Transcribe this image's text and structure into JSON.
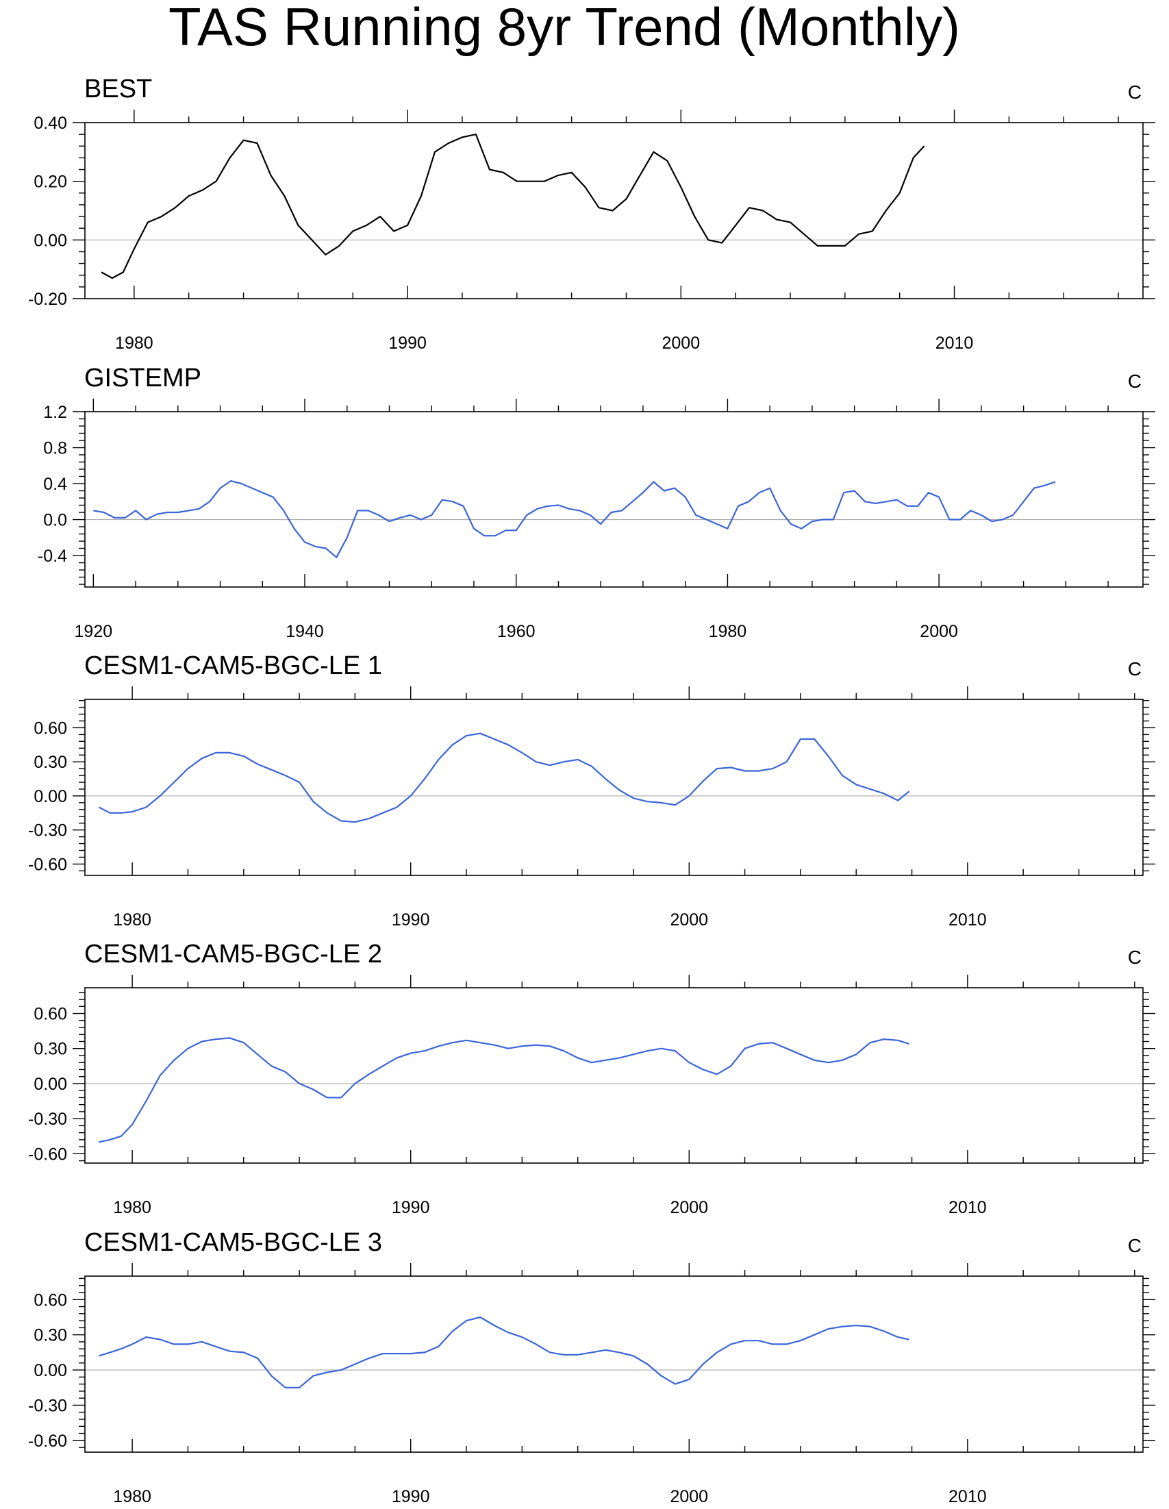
{
  "title": "TAS Running 8yr Trend (Monthly)",
  "colors": {
    "observed": "#000000",
    "model": "#3a64d8",
    "zero_line": "#aaaaaa"
  },
  "chart_data": [
    {
      "type": "line",
      "title": "BEST",
      "units": "C",
      "xlim": [
        1978.2,
        2016.9
      ],
      "ylim": [
        -0.2,
        0.4
      ],
      "xticks": [
        1980,
        1990,
        2000,
        2010
      ],
      "xtick_labels": [
        "1980",
        "1990",
        "2000",
        "2010"
      ],
      "yticks": [
        -0.2,
        0.0,
        0.2,
        0.4
      ],
      "ytick_labels": [
        "-0.20",
        "0.00",
        "0.20",
        "0.40"
      ],
      "color_key": "observed",
      "series": [
        {
          "name": "BEST",
          "x": [
            1978.8,
            1979.2,
            1979.6,
            1980.0,
            1980.5,
            1981.0,
            1981.5,
            1982.0,
            1982.5,
            1983.0,
            1983.5,
            1984.0,
            1984.5,
            1985.0,
            1985.5,
            1986.0,
            1986.5,
            1987.0,
            1987.5,
            1988.0,
            1988.5,
            1989.0,
            1989.5,
            1990.0,
            1990.5,
            1991.0,
            1991.5,
            1992.0,
            1992.5,
            1993.0,
            1993.5,
            1994.0,
            1994.5,
            1995.0,
            1995.5,
            1996.0,
            1996.5,
            1997.0,
            1997.5,
            1998.0,
            1998.5,
            1999.0,
            1999.5,
            2000.0,
            2000.5,
            2001.0,
            2001.5,
            2002.0,
            2002.5,
            2003.0,
            2003.5,
            2004.0,
            2004.5,
            2005.0,
            2005.5,
            2006.0,
            2006.5,
            2007.0,
            2007.5,
            2008.0,
            2008.5,
            2008.9
          ],
          "values": [
            -0.11,
            -0.13,
            -0.11,
            -0.03,
            0.06,
            0.08,
            0.11,
            0.15,
            0.17,
            0.2,
            0.28,
            0.34,
            0.33,
            0.22,
            0.15,
            0.05,
            0.0,
            -0.05,
            -0.02,
            0.03,
            0.05,
            0.08,
            0.03,
            0.05,
            0.15,
            0.3,
            0.33,
            0.35,
            0.36,
            0.24,
            0.23,
            0.2,
            0.2,
            0.2,
            0.22,
            0.23,
            0.18,
            0.11,
            0.1,
            0.14,
            0.22,
            0.3,
            0.27,
            0.18,
            0.08,
            0.0,
            -0.01,
            0.05,
            0.11,
            0.1,
            0.07,
            0.06,
            0.02,
            -0.02,
            -0.02,
            -0.02,
            0.02,
            0.03,
            0.1,
            0.16,
            0.28,
            0.32
          ]
        }
      ]
    },
    {
      "type": "line",
      "title": "GISTEMP",
      "units": "C",
      "xlim": [
        1919.2,
        2019.3
      ],
      "ylim": [
        -0.75,
        1.2
      ],
      "xticks": [
        1920,
        1940,
        1960,
        1980,
        2000
      ],
      "xtick_labels": [
        "1920",
        "1940",
        "1960",
        "1980",
        "2000"
      ],
      "yticks": [
        -0.4,
        0.0,
        0.4,
        0.8,
        1.2
      ],
      "ytick_labels": [
        "-0.4",
        "0.0",
        "0.4",
        "0.8",
        "1.2"
      ],
      "color_key": "model",
      "series": [
        {
          "name": "GISTEMP",
          "x": [
            1920,
            1921,
            1922,
            1923,
            1924,
            1925,
            1926,
            1927,
            1928,
            1929,
            1930,
            1931,
            1932,
            1933,
            1934,
            1935,
            1936,
            1937,
            1938,
            1939,
            1940,
            1941,
            1942,
            1943,
            1944,
            1945,
            1946,
            1947,
            1948,
            1949,
            1950,
            1951,
            1952,
            1953,
            1954,
            1955,
            1956,
            1957,
            1958,
            1959,
            1960,
            1961,
            1962,
            1963,
            1964,
            1965,
            1966,
            1967,
            1968,
            1969,
            1970,
            1971,
            1972,
            1973,
            1974,
            1975,
            1976,
            1977,
            1978,
            1979,
            1980,
            1981,
            1982,
            1983,
            1984,
            1985,
            1986,
            1987,
            1988,
            1989,
            1990,
            1991,
            1992,
            1993,
            1994,
            1995,
            1996,
            1997,
            1998,
            1999,
            2000,
            2001,
            2002,
            2003,
            2004,
            2005,
            2006,
            2007,
            2008,
            2009,
            2010,
            2011
          ],
          "values": [
            0.1,
            0.08,
            0.02,
            0.02,
            0.1,
            0.0,
            0.06,
            0.08,
            0.08,
            0.1,
            0.12,
            0.2,
            0.35,
            0.43,
            0.4,
            0.35,
            0.3,
            0.25,
            0.1,
            -0.1,
            -0.25,
            -0.3,
            -0.32,
            -0.42,
            -0.2,
            0.1,
            0.1,
            0.05,
            -0.02,
            0.02,
            0.05,
            0.0,
            0.05,
            0.22,
            0.2,
            0.15,
            -0.1,
            -0.18,
            -0.18,
            -0.12,
            -0.12,
            0.05,
            0.12,
            0.15,
            0.16,
            0.12,
            0.1,
            0.05,
            -0.05,
            0.08,
            0.1,
            0.2,
            0.3,
            0.42,
            0.32,
            0.35,
            0.25,
            0.05,
            0.0,
            -0.05,
            -0.1,
            0.15,
            0.2,
            0.3,
            0.35,
            0.1,
            -0.05,
            -0.1,
            -0.02,
            0.0,
            0.0,
            0.3,
            0.32,
            0.2,
            0.18,
            0.2,
            0.22,
            0.15,
            0.15,
            0.3,
            0.25,
            0.0,
            0.0,
            0.1,
            0.05,
            -0.02,
            0.0,
            0.05,
            0.2,
            0.35,
            0.38,
            0.42
          ]
        }
      ]
    },
    {
      "type": "line",
      "title": "CESM1-CAM5-BGC-LE 1",
      "units": "C",
      "xlim": [
        1978.3,
        2016.3
      ],
      "ylim": [
        -0.7,
        0.85
      ],
      "xticks": [
        1980,
        1990,
        2000,
        2010
      ],
      "xtick_labels": [
        "1980",
        "1990",
        "2000",
        "2010"
      ],
      "yticks": [
        -0.6,
        -0.3,
        0.0,
        0.3,
        0.6
      ],
      "ytick_labels": [
        "-0.60",
        "-0.30",
        "0.00",
        "0.30",
        "0.60"
      ],
      "color_key": "model",
      "series": [
        {
          "name": "CESM1-CAM5-BGC-LE 1",
          "x": [
            1978.8,
            1979.2,
            1979.6,
            1980.0,
            1980.5,
            1981.0,
            1981.5,
            1982.0,
            1982.5,
            1983.0,
            1983.5,
            1984.0,
            1984.5,
            1985.0,
            1985.5,
            1986.0,
            1986.5,
            1987.0,
            1987.5,
            1988.0,
            1988.5,
            1989.0,
            1989.5,
            1990.0,
            1990.5,
            1991.0,
            1991.5,
            1992.0,
            1992.5,
            1993.0,
            1993.5,
            1994.0,
            1994.5,
            1995.0,
            1995.5,
            1996.0,
            1996.5,
            1997.0,
            1997.5,
            1998.0,
            1998.5,
            1999.0,
            1999.5,
            2000.0,
            2000.5,
            2001.0,
            2001.5,
            2002.0,
            2002.5,
            2003.0,
            2003.5,
            2004.0,
            2004.5,
            2005.0,
            2005.5,
            2006.0,
            2006.5,
            2007.0,
            2007.5,
            2007.9
          ],
          "values": [
            -0.1,
            -0.15,
            -0.15,
            -0.14,
            -0.1,
            0.0,
            0.12,
            0.24,
            0.33,
            0.38,
            0.38,
            0.35,
            0.28,
            0.23,
            0.18,
            0.12,
            -0.05,
            -0.15,
            -0.22,
            -0.23,
            -0.2,
            -0.15,
            -0.1,
            0.0,
            0.15,
            0.32,
            0.45,
            0.53,
            0.55,
            0.5,
            0.45,
            0.38,
            0.3,
            0.27,
            0.3,
            0.32,
            0.26,
            0.15,
            0.05,
            -0.02,
            -0.05,
            -0.06,
            -0.08,
            0.0,
            0.13,
            0.24,
            0.25,
            0.22,
            0.22,
            0.24,
            0.3,
            0.5,
            0.5,
            0.35,
            0.18,
            0.1,
            0.06,
            0.02,
            -0.04,
            0.04
          ]
        }
      ]
    },
    {
      "type": "line",
      "title": "CESM1-CAM5-BGC-LE 2",
      "units": "C",
      "xlim": [
        1978.3,
        2016.3
      ],
      "ylim": [
        -0.68,
        0.82
      ],
      "xticks": [
        1980,
        1990,
        2000,
        2010
      ],
      "xtick_labels": [
        "1980",
        "1990",
        "2000",
        "2010"
      ],
      "yticks": [
        -0.6,
        -0.3,
        0.0,
        0.3,
        0.6
      ],
      "ytick_labels": [
        "-0.60",
        "-0.30",
        "0.00",
        "0.30",
        "0.60"
      ],
      "color_key": "model",
      "series": [
        {
          "name": "CESM1-CAM5-BGC-LE 2",
          "x": [
            1978.8,
            1979.2,
            1979.6,
            1980.0,
            1980.5,
            1981.0,
            1981.5,
            1982.0,
            1982.5,
            1983.0,
            1983.5,
            1984.0,
            1984.5,
            1985.0,
            1985.5,
            1986.0,
            1986.5,
            1987.0,
            1987.5,
            1988.0,
            1988.5,
            1989.0,
            1989.5,
            1990.0,
            1990.5,
            1991.0,
            1991.5,
            1992.0,
            1992.5,
            1993.0,
            1993.5,
            1994.0,
            1994.5,
            1995.0,
            1995.5,
            1996.0,
            1996.5,
            1997.0,
            1997.5,
            1998.0,
            1998.5,
            1999.0,
            1999.5,
            2000.0,
            2000.5,
            2001.0,
            2001.5,
            2002.0,
            2002.5,
            2003.0,
            2003.5,
            2004.0,
            2004.5,
            2005.0,
            2005.5,
            2006.0,
            2006.5,
            2007.0,
            2007.5,
            2007.9
          ],
          "values": [
            -0.5,
            -0.48,
            -0.45,
            -0.35,
            -0.15,
            0.07,
            0.2,
            0.3,
            0.36,
            0.38,
            0.39,
            0.35,
            0.25,
            0.15,
            0.1,
            0.0,
            -0.05,
            -0.12,
            -0.12,
            0.0,
            0.08,
            0.15,
            0.22,
            0.26,
            0.28,
            0.32,
            0.35,
            0.37,
            0.35,
            0.33,
            0.3,
            0.32,
            0.33,
            0.32,
            0.28,
            0.22,
            0.18,
            0.2,
            0.22,
            0.25,
            0.28,
            0.3,
            0.28,
            0.18,
            0.12,
            0.08,
            0.15,
            0.3,
            0.34,
            0.35,
            0.3,
            0.25,
            0.2,
            0.18,
            0.2,
            0.25,
            0.35,
            0.38,
            0.37,
            0.34
          ]
        }
      ]
    },
    {
      "type": "line",
      "title": "CESM1-CAM5-BGC-LE 3",
      "units": "C",
      "xlim": [
        1978.3,
        2016.3
      ],
      "ylim": [
        -0.7,
        0.8
      ],
      "xticks": [
        1980,
        1990,
        2000,
        2010
      ],
      "xtick_labels": [
        "1980",
        "1990",
        "2000",
        "2010"
      ],
      "yticks": [
        -0.6,
        -0.3,
        0.0,
        0.3,
        0.6
      ],
      "ytick_labels": [
        "-0.60",
        "-0.30",
        "0.00",
        "0.30",
        "0.60"
      ],
      "color_key": "model",
      "series": [
        {
          "name": "CESM1-CAM5-BGC-LE 3",
          "x": [
            1978.8,
            1979.2,
            1979.6,
            1980.0,
            1980.5,
            1981.0,
            1981.5,
            1982.0,
            1982.5,
            1983.0,
            1983.5,
            1984.0,
            1984.5,
            1985.0,
            1985.5,
            1986.0,
            1986.5,
            1987.0,
            1987.5,
            1988.0,
            1988.5,
            1989.0,
            1989.5,
            1990.0,
            1990.5,
            1991.0,
            1991.5,
            1992.0,
            1992.5,
            1993.0,
            1993.5,
            1994.0,
            1994.5,
            1995.0,
            1995.5,
            1996.0,
            1996.5,
            1997.0,
            1997.5,
            1998.0,
            1998.5,
            1999.0,
            1999.5,
            2000.0,
            2000.5,
            2001.0,
            2001.5,
            2002.0,
            2002.5,
            2003.0,
            2003.5,
            2004.0,
            2004.5,
            2005.0,
            2005.5,
            2006.0,
            2006.5,
            2007.0,
            2007.5,
            2007.9
          ],
          "values": [
            0.12,
            0.15,
            0.18,
            0.22,
            0.28,
            0.26,
            0.22,
            0.22,
            0.24,
            0.2,
            0.16,
            0.15,
            0.1,
            -0.05,
            -0.15,
            -0.15,
            -0.05,
            -0.02,
            0.0,
            0.05,
            0.1,
            0.14,
            0.14,
            0.14,
            0.15,
            0.2,
            0.33,
            0.42,
            0.45,
            0.38,
            0.32,
            0.28,
            0.22,
            0.15,
            0.13,
            0.13,
            0.15,
            0.17,
            0.15,
            0.12,
            0.05,
            -0.05,
            -0.12,
            -0.08,
            0.05,
            0.15,
            0.22,
            0.25,
            0.25,
            0.22,
            0.22,
            0.25,
            0.3,
            0.35,
            0.37,
            0.38,
            0.37,
            0.33,
            0.28,
            0.26
          ]
        }
      ]
    }
  ]
}
